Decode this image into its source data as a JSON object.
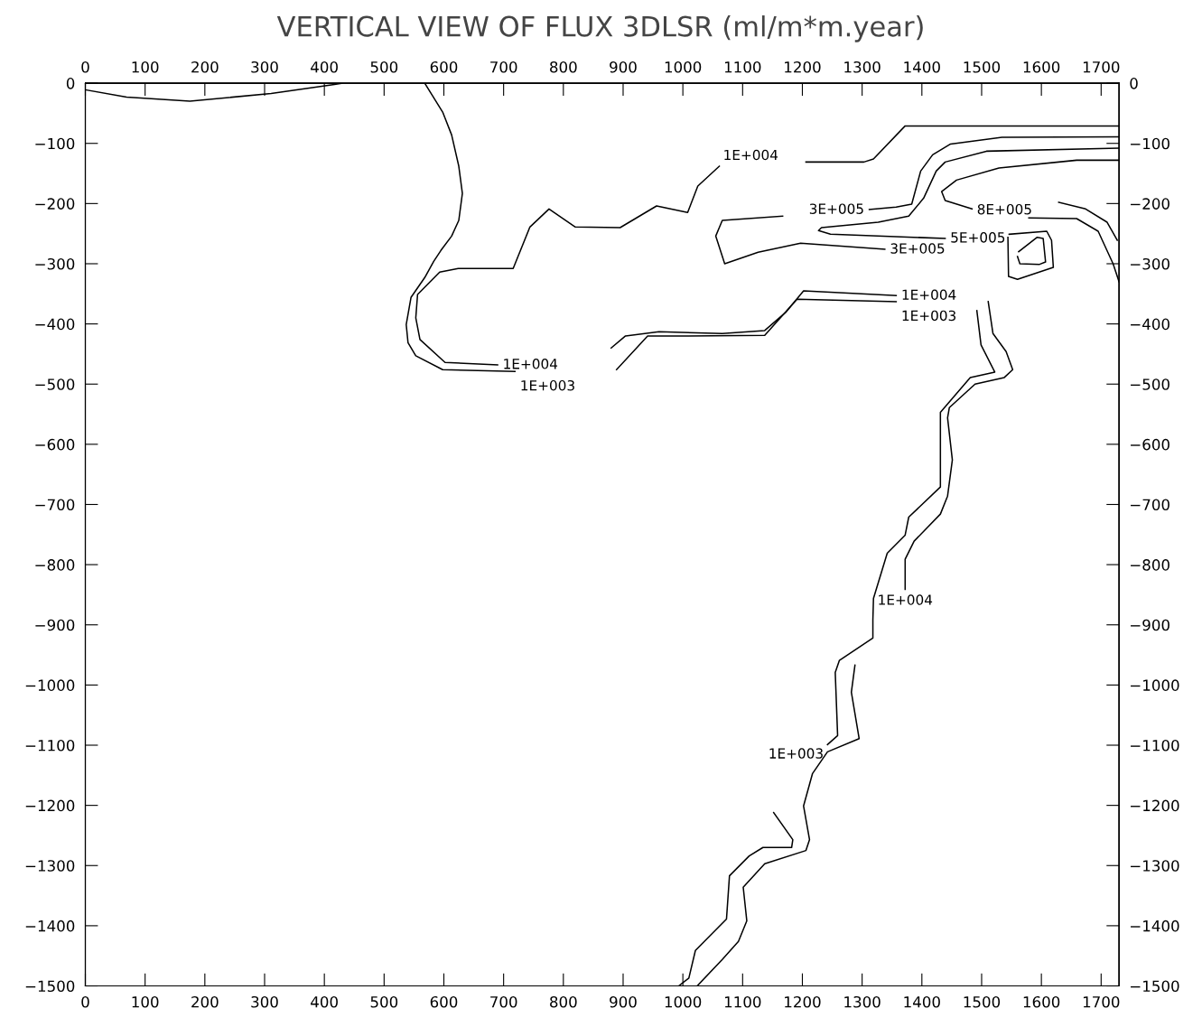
{
  "chart_data": {
    "type": "line",
    "title": "VERTICAL VIEW OF FLUX 3DLSR (ml/m*m.year)",
    "xlim": [
      0,
      1730
    ],
    "ylim": [
      -1500,
      0
    ],
    "xticks": [
      0,
      100,
      200,
      300,
      400,
      500,
      600,
      700,
      800,
      900,
      1000,
      1100,
      1200,
      1300,
      1400,
      1500,
      1600,
      1700
    ],
    "yticks": [
      0,
      -100,
      -200,
      -300,
      -400,
      -500,
      -600,
      -700,
      -800,
      -900,
      -1000,
      -1100,
      -1200,
      -1300,
      -1400,
      -1500
    ],
    "x2lim": [
      0,
      1730
    ],
    "x2ticks": [
      0,
      100,
      200,
      300,
      400,
      500,
      600,
      700,
      800,
      900,
      1000,
      1100,
      1200,
      1300,
      1400,
      1500,
      1600,
      1700
    ],
    "y2lim": [
      -1500,
      0
    ],
    "y2ticks": [
      0,
      -100,
      -200,
      -300,
      -400,
      -500,
      -600,
      -700,
      -800,
      -900,
      -1000,
      -1100,
      -1200,
      -1300,
      -1400,
      -1500
    ],
    "grid": false,
    "marker": "none",
    "line_style": "solid",
    "series": [
      {
        "color": "#000000",
        "x": [
          0,
          69,
          175,
          311,
          417,
          430
        ],
        "values": [
          -11,
          -23,
          -30,
          -17,
          -2,
          0
        ]
      },
      {
        "color": "#000000",
        "x": [
          568,
          598,
          613,
          625,
          631,
          625,
          613,
          595,
          583,
          568,
          545,
          537,
          540,
          553,
          598,
          719
        ],
        "values": [
          0,
          -48,
          -86,
          -138,
          -183,
          -228,
          -254,
          -278,
          -296,
          -323,
          -356,
          -401,
          -431,
          -453,
          -476,
          -479
        ]
      },
      {
        "color": "#000000",
        "x": [
          889,
          941,
          1005,
          1137,
          1191,
          1357
        ],
        "values": [
          -476,
          -420,
          -420,
          -419,
          -359,
          -363
        ]
      },
      {
        "color": "#000000",
        "x": [
          1492,
          1499,
          1522,
          1481,
          1431,
          1431,
          1378,
          1372,
          1342,
          1319,
          1318,
          1318,
          1262,
          1255,
          1259,
          1242
        ],
        "values": [
          -378,
          -435,
          -480,
          -489,
          -547,
          -671,
          -721,
          -751,
          -781,
          -856,
          -892,
          -922,
          -959,
          -979,
          -1084,
          -1099
        ]
      },
      {
        "color": "#000000",
        "x": [
          1152,
          1184,
          1182,
          1134,
          1111,
          1078,
          1073,
          1021,
          1010,
          993
        ],
        "values": [
          -1212,
          -1257,
          -1270,
          -1270,
          -1284,
          -1317,
          -1389,
          -1441,
          -1487,
          -1500
        ]
      },
      {
        "color": "#000000",
        "x": [
          1061,
          1025,
          1008,
          956,
          895,
          820,
          776,
          744,
          716,
          624,
          593,
          556,
          553,
          560,
          602,
          690
        ],
        "values": [
          -138,
          -171,
          -215,
          -204,
          -240,
          -239,
          -209,
          -239,
          -308,
          -308,
          -314,
          -351,
          -390,
          -426,
          -464,
          -468
        ]
      },
      {
        "color": "#000000",
        "x": [
          1206,
          1303,
          1319,
          1372,
          1730
        ],
        "values": [
          -131,
          -131,
          -126,
          -71,
          -71
        ]
      },
      {
        "color": "#000000",
        "x": [
          880,
          904,
          960,
          1066,
          1137,
          1172,
          1202,
          1357
        ],
        "values": [
          -440,
          -420,
          -413,
          -416,
          -411,
          -381,
          -345,
          -353
        ]
      },
      {
        "color": "#000000",
        "x": [
          1511,
          1519,
          1541,
          1552,
          1538,
          1489,
          1446,
          1443,
          1451,
          1443,
          1431,
          1387,
          1372,
          1372
        ],
        "values": [
          -363,
          -416,
          -446,
          -476,
          -489,
          -500,
          -539,
          -556,
          -626,
          -686,
          -716,
          -761,
          -791,
          -841
        ]
      },
      {
        "color": "#000000",
        "x": [
          1288,
          1282,
          1295,
          1242,
          1217,
          1202,
          1212,
          1206,
          1137,
          1101,
          1107,
          1093,
          1066,
          1024
        ],
        "values": [
          -967,
          -1012,
          -1089,
          -1111,
          -1147,
          -1201,
          -1257,
          -1275,
          -1297,
          -1336,
          -1392,
          -1426,
          -1456,
          -1500
        ]
      },
      {
        "color": "#000000",
        "x": [
          1730,
          1534,
          1448,
          1418,
          1398,
          1383,
          1357,
          1312
        ],
        "values": [
          -89,
          -90,
          -101,
          -119,
          -146,
          -201,
          -206,
          -210
        ]
      },
      {
        "color": "#000000",
        "x": [
          1167,
          1066,
          1055,
          1070,
          1126,
          1197,
          1338
        ],
        "values": [
          -221,
          -228,
          -254,
          -300,
          -281,
          -266,
          -276
        ]
      },
      {
        "color": "#000000",
        "x": [
          1730,
          1508,
          1439,
          1424,
          1403,
          1378,
          1327,
          1232,
          1227,
          1247,
          1439
        ],
        "values": [
          -108,
          -113,
          -131,
          -146,
          -191,
          -221,
          -231,
          -240,
          -245,
          -251,
          -258
        ]
      },
      {
        "color": "#000000",
        "x": [
          1579,
          1659,
          1695,
          1720,
          1730
        ],
        "values": [
          -224,
          -225,
          -246,
          -300,
          -330
        ]
      },
      {
        "color": "#000000",
        "x": [
          1730,
          1659,
          1529,
          1458,
          1433,
          1439,
          1484
        ],
        "values": [
          -128,
          -128,
          -141,
          -161,
          -180,
          -195,
          -209
        ]
      },
      {
        "color": "#000000",
        "x": [
          1629,
          1674,
          1710,
          1727
        ],
        "values": [
          -198,
          -209,
          -231,
          -261
        ]
      },
      {
        "color": "#000000",
        "x": [
          1546,
          1609,
          1617,
          1620,
          1560,
          1545,
          1544
        ],
        "values": [
          -251,
          -246,
          -261,
          -306,
          -326,
          -321,
          -256
        ]
      },
      {
        "color": "#000000",
        "x": [
          1562,
          1593,
          1603,
          1607,
          1597,
          1564,
          1560
        ],
        "values": [
          -280,
          -256,
          -258,
          -297,
          -301,
          -300,
          -288
        ]
      }
    ],
    "annotations": [
      {
        "text": "1E+004",
        "x": 1061,
        "y": -138
      },
      {
        "text": "3E+005",
        "x": 1312,
        "y": -210
      },
      {
        "text": "3E+005",
        "x": 1338,
        "y": -276
      },
      {
        "text": "5E+005",
        "x": 1439,
        "y": -258
      },
      {
        "text": "8E+005",
        "x": 1484,
        "y": -209
      },
      {
        "text": "1E+004",
        "x": 690,
        "y": -468
      },
      {
        "text": "1E+003",
        "x": 719,
        "y": -479
      },
      {
        "text": "1E+004",
        "x": 1357,
        "y": -353
      },
      {
        "text": "1E+003",
        "x": 1357,
        "y": -363
      },
      {
        "text": "1E+004",
        "x": 1372,
        "y": -841
      },
      {
        "text": "1E+003",
        "x": 1242,
        "y": -1099
      }
    ]
  }
}
